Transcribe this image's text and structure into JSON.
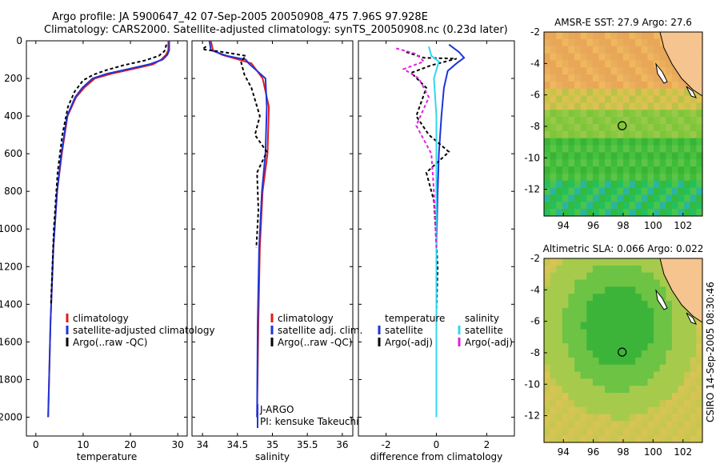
{
  "figure": {
    "title_line1": "Argo profile: JA 5900647_42 07-Sep-2005 20050908_475 7.96S 97.928E",
    "title_line2": "Climatology: CARS2000. Satellite-adjusted climatology: synTS_20050908.nc (0.23d later)",
    "credit": "CSIRO 14-Sep-2005 08:30:46"
  },
  "colors": {
    "climatology": "#e41a1c",
    "satellite": "#1f35d6",
    "argo": "#000000",
    "satellite_sal": "#33d6f0",
    "argo_sal": "#e020e0"
  },
  "chart_data": [
    {
      "type": "line",
      "xlabel": "temperature",
      "ylabel": "",
      "xlim": [
        -2,
        32
      ],
      "ylim": [
        2100,
        0
      ],
      "xticks": [
        "0",
        "10",
        "20",
        "30"
      ],
      "yticks": [
        "0",
        "200",
        "400",
        "600",
        "800",
        "1000",
        "1200",
        "1400",
        "1600",
        "1800",
        "2000"
      ],
      "legend": [
        "climatology",
        "satellite-adjusted climatology",
        "Argo(..raw -QC)"
      ],
      "series": [
        {
          "name": "climatology",
          "color": "#e41a1c",
          "dash": "",
          "x": [
            28.0,
            28.0,
            27.5,
            26.5,
            24.8,
            20.5,
            16.0,
            12.5,
            10.2,
            8.5,
            6.7,
            5.5,
            4.5,
            3.7,
            3.1,
            2.6
          ],
          "y": [
            0,
            50,
            75,
            100,
            125,
            150,
            175,
            200,
            250,
            300,
            400,
            600,
            800,
            1100,
            1500,
            2000
          ]
        },
        {
          "name": "satellite-adjusted climatology",
          "color": "#1f35d6",
          "dash": "",
          "x": [
            28.2,
            28.2,
            27.8,
            26.8,
            24.0,
            19.5,
            15.0,
            12.0,
            9.8,
            8.3,
            6.6,
            5.4,
            4.5,
            3.7,
            3.1,
            2.6
          ],
          "y": [
            0,
            50,
            75,
            100,
            125,
            150,
            175,
            200,
            250,
            300,
            400,
            600,
            800,
            1100,
            1500,
            2000
          ]
        },
        {
          "name": "Argo(..raw -QC)",
          "color": "#000000",
          "dash": "4,3",
          "x": [
            27.6,
            27.2,
            26.0,
            23.0,
            18.5,
            15.0,
            12.2,
            10.0,
            8.2,
            6.8,
            5.6,
            4.6,
            3.8,
            3.2
          ],
          "y": [
            20,
            55,
            80,
            105,
            130,
            155,
            180,
            210,
            270,
            350,
            500,
            700,
            1000,
            1400
          ]
        }
      ]
    },
    {
      "type": "line",
      "xlabel": "salinity",
      "ylabel": "",
      "xlim": [
        33.85,
        36.15
      ],
      "ylim": [
        2100,
        0
      ],
      "xticks": [
        "34",
        "34.5",
        "35",
        "35.5",
        "36"
      ],
      "legend": [
        "climatology",
        "satellite adj. clim.",
        "Argo(..raw -QC)"
      ],
      "annotations": [
        "J-ARGO",
        "PI: kensuke Takeuchi"
      ],
      "series": [
        {
          "name": "climatology",
          "color": "#e41a1c",
          "dash": "",
          "x": [
            34.12,
            34.15,
            34.28,
            34.52,
            34.7,
            34.86,
            34.95,
            34.93,
            34.86,
            34.82,
            34.8,
            34.78
          ],
          "y": [
            0,
            50,
            75,
            100,
            120,
            200,
            350,
            600,
            800,
            1100,
            1500,
            2000
          ]
        },
        {
          "name": "satellite adj. clim.",
          "color": "#1f35d6",
          "dash": "",
          "x": [
            34.1,
            34.12,
            34.35,
            34.62,
            34.66,
            34.9,
            34.92,
            34.9,
            34.85,
            34.81,
            34.79,
            34.78
          ],
          "y": [
            0,
            50,
            80,
            100,
            120,
            200,
            350,
            600,
            800,
            1100,
            1500,
            2000
          ]
        },
        {
          "name": "Argo(..raw -QC)",
          "color": "#000000",
          "dash": "4,3",
          "x": [
            34.05,
            34.0,
            34.3,
            34.62,
            34.55,
            34.6,
            34.7,
            34.82,
            34.75,
            34.92,
            34.78,
            34.8,
            34.77
          ],
          "y": [
            30,
            45,
            60,
            80,
            110,
            180,
            250,
            400,
            500,
            590,
            700,
            900,
            1100
          ]
        }
      ]
    },
    {
      "type": "line",
      "xlabel": "difference from climatology",
      "ylabel": "",
      "xlim": [
        -3.1,
        3.1
      ],
      "ylim": [
        2100,
        0
      ],
      "xticks": [
        "-2",
        "0",
        "2"
      ],
      "legend_temperature": [
        "temperature",
        "satellite",
        "Argo(-adj)"
      ],
      "legend_salinity": [
        "salinity",
        "satellite",
        "Argo(-adj)"
      ],
      "series": [
        {
          "name": "satellite",
          "color": "#1f35d6",
          "dash": "",
          "x": [
            0.5,
            0.9,
            1.1,
            0.8,
            0.45,
            0.3,
            0.2,
            0.1,
            0.05,
            0.0,
            0.0,
            0.0
          ],
          "y": [
            20,
            60,
            90,
            120,
            160,
            250,
            400,
            600,
            800,
            1100,
            1500,
            1880
          ]
        },
        {
          "name": "Argo(-adj)",
          "color": "#000000",
          "dash": "4,3",
          "x": [
            -1.2,
            -0.5,
            0.8,
            -0.2,
            -1.0,
            -0.4,
            -0.8,
            -0.3,
            0.5,
            -0.4,
            -0.1,
            0.05,
            0.0
          ],
          "y": [
            60,
            90,
            95,
            130,
            170,
            250,
            400,
            500,
            590,
            700,
            850,
            1200,
            1450
          ]
        },
        {
          "name": "satellite",
          "color": "#33d6f0",
          "dash": "",
          "x": [
            -0.3,
            -0.2,
            0.1,
            -0.1,
            0.0,
            0.0,
            0.0,
            0.0,
            0.0
          ],
          "y": [
            30,
            80,
            110,
            200,
            400,
            700,
            1000,
            1500,
            2000
          ]
        },
        {
          "name": "Argo(-adj)",
          "color": "#e020e0",
          "dash": "4,3",
          "x": [
            -1.6,
            -0.8,
            -0.5,
            -1.3,
            -0.7,
            -0.3,
            -0.8,
            -0.2,
            -0.1,
            0.0
          ],
          "y": [
            40,
            70,
            110,
            150,
            200,
            300,
            450,
            600,
            800,
            1100
          ]
        }
      ]
    },
    {
      "type": "heatmap",
      "title": "AMSR-E SST: 27.9 Argo: 27.6",
      "xticks": [
        "94",
        "96",
        "98",
        "100",
        "102"
      ],
      "yticks": [
        "-2",
        "-4",
        "-6",
        "-8",
        "-10",
        "-12"
      ],
      "xlim": [
        92.7,
        103.3
      ],
      "ylim": [
        -13.7,
        -2
      ],
      "marker": {
        "lon": 97.93,
        "lat": -7.96
      }
    },
    {
      "type": "heatmap",
      "title": "Altimetric SLA: 0.066 Argo: 0.022",
      "xticks": [
        "94",
        "96",
        "98",
        "100",
        "102"
      ],
      "yticks": [
        "-2",
        "-4",
        "-6",
        "-8",
        "-10",
        "-12"
      ],
      "xlim": [
        92.7,
        103.3
      ],
      "ylim": [
        -13.7,
        -2
      ],
      "marker": {
        "lon": 97.93,
        "lat": -7.96
      }
    }
  ]
}
